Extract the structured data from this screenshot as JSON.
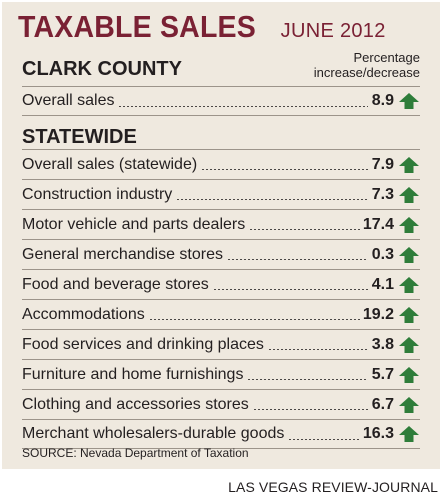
{
  "header": {
    "title": "TAXABLE SALES",
    "subtitle": "JUNE 2012",
    "column_label_line1": "Percentage",
    "column_label_line2": "increase/decrease"
  },
  "colors": {
    "title": "#7a2134",
    "arrow_up": "#2e7d3a",
    "panel_background": "#efe9df"
  },
  "icons": {
    "trend": "arrow-up-icon"
  },
  "chart_data": {
    "type": "table",
    "title": "TAXABLE SALES JUNE 2012",
    "value_column": "Percentage increase/decrease",
    "groups": [
      {
        "name": "CLARK COUNTY",
        "rows": [
          {
            "label": "Overall sales",
            "value": 8.9,
            "display": "8.9",
            "direction": "up"
          }
        ]
      },
      {
        "name": "STATEWIDE",
        "rows": [
          {
            "label": "Overall sales (statewide)",
            "value": 7.9,
            "display": "7.9",
            "direction": "up"
          },
          {
            "label": "Construction industry",
            "value": 7.3,
            "display": "7.3",
            "direction": "up"
          },
          {
            "label": "Motor vehicle and parts dealers",
            "value": 17.4,
            "display": "17.4",
            "direction": "up"
          },
          {
            "label": "General merchandise stores",
            "value": 0.3,
            "display": "0.3",
            "direction": "up"
          },
          {
            "label": "Food and beverage stores",
            "value": 4.1,
            "display": "4.1",
            "direction": "up"
          },
          {
            "label": "Accommodations",
            "value": 19.2,
            "display": "19.2",
            "direction": "up"
          },
          {
            "label": "Food services and drinking places",
            "value": 3.8,
            "display": "3.8",
            "direction": "up"
          },
          {
            "label": "Furniture and home furnishings",
            "value": 5.7,
            "display": "5.7",
            "direction": "up"
          },
          {
            "label": "Clothing and accessories stores",
            "value": 6.7,
            "display": "6.7",
            "direction": "up"
          },
          {
            "label": "Merchant wholesalers-durable goods",
            "value": 16.3,
            "display": "16.3",
            "direction": "up"
          }
        ]
      }
    ]
  },
  "footer": {
    "source": "SOURCE: Nevada Department of Taxation",
    "credit": "LAS VEGAS REVIEW-JOURNAL"
  }
}
